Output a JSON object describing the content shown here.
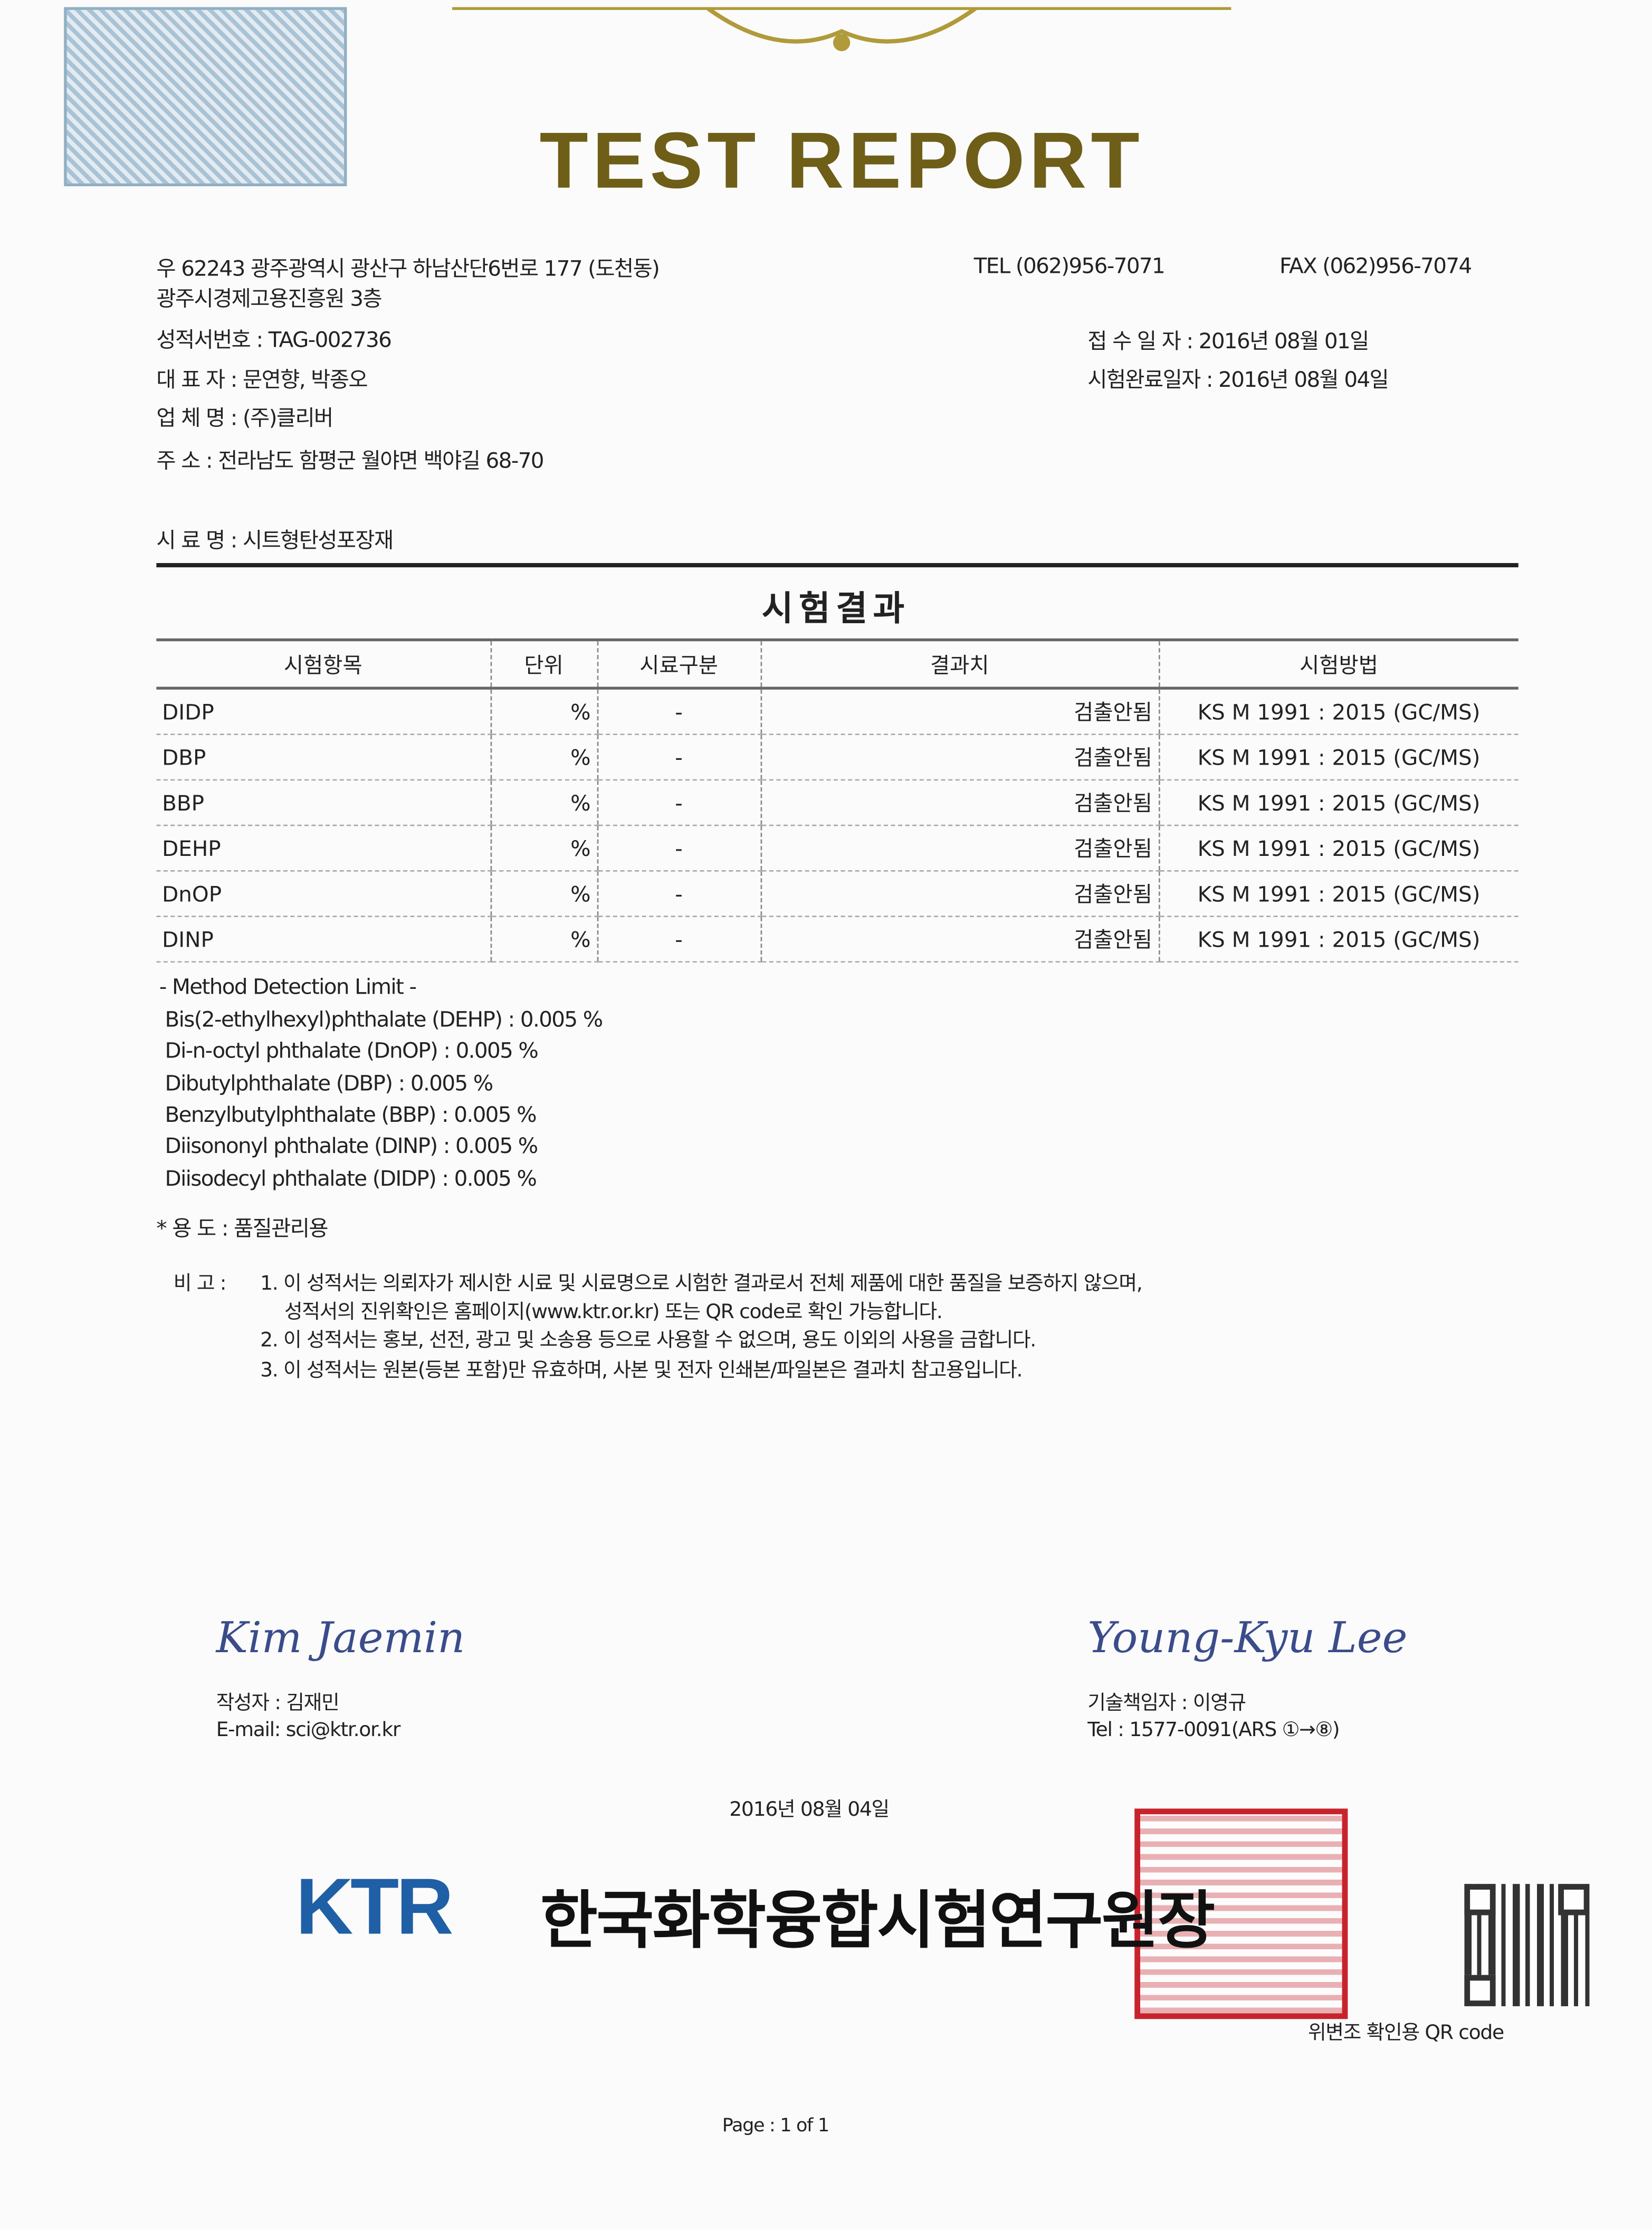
{
  "header": {
    "title": "TEST REPORT",
    "address_line1": "우 62243 광주광역시 광산구 하남산단6번로 177 (도천동)",
    "address_line2": "광주시경제고용진흥원 3층",
    "tel": "TEL (062)956-7071",
    "fax": "FAX (062)956-7074"
  },
  "info": {
    "report_no": "성적서번호 : TAG-002736",
    "representative": "대  표  자 : 문연향, 박종오",
    "company": "업  체  명 : (주)클리버",
    "address": "주        소 : 전라남도 함평군 월야면 백야길 68-70",
    "received": "접 수    일 자 : 2016년 08월 01일",
    "completed": "시험완료일자 : 2016년 08월 04일",
    "sample": "시  료  명 : 시트형탄성포장재"
  },
  "results": {
    "title": "시험결과",
    "headers": [
      "시험항목",
      "단위",
      "시료구분",
      "결과치",
      "시험방법"
    ],
    "rows": [
      {
        "item": "DIDP",
        "unit": "%",
        "sample": "-",
        "result": "검출안됨",
        "method": "KS M 1991 : 2015 (GC/MS)"
      },
      {
        "item": "DBP",
        "unit": "%",
        "sample": "-",
        "result": "검출안됨",
        "method": "KS M 1991 : 2015 (GC/MS)"
      },
      {
        "item": "BBP",
        "unit": "%",
        "sample": "-",
        "result": "검출안됨",
        "method": "KS M 1991 : 2015 (GC/MS)"
      },
      {
        "item": "DEHP",
        "unit": "%",
        "sample": "-",
        "result": "검출안됨",
        "method": "KS M 1991 : 2015 (GC/MS)"
      },
      {
        "item": "DnOP",
        "unit": "%",
        "sample": "-",
        "result": "검출안됨",
        "method": "KS M 1991 : 2015 (GC/MS)"
      },
      {
        "item": "DINP",
        "unit": "%",
        "sample": "-",
        "result": "검출안됨",
        "method": "KS M 1991 : 2015 (GC/MS)"
      }
    ]
  },
  "mdl": {
    "title": "- Method Detection Limit -",
    "lines": [
      "Bis(2-ethylhexyl)phthalate (DEHP) : 0.005 %",
      "Di-n-octyl phthalate (DnOP) : 0.005 %",
      "Dibutylphthalate (DBP) : 0.005 %",
      "Benzylbutylphthalate (BBP) : 0.005 %",
      "Diisononyl phthalate (DINP) : 0.005 %",
      "Diisodecyl phthalate (DIDP) : 0.005 %"
    ]
  },
  "purpose": "* 용 도 : 품질관리용",
  "remarks": {
    "label": "비 고 :",
    "lines": [
      "1. 이 성적서는 의뢰자가 제시한 시료 및 시료명으로 시험한 결과로서 전체 제품에 대한 품질을 보증하지 않으며,",
      "성적서의 진위확인은 홈페이지(www.ktr.or.kr) 또는 QR code로 확인 가능합니다.",
      "2. 이 성적서는 홍보, 선전, 광고 및 소송용 등으로 사용할 수 없으며, 용도 이외의 사용을 금합니다.",
      "3. 이 성적서는 원본(등본 포함)만 유효하며, 사본 및 전자 인쇄본/파일본은 결과치 참고용입니다."
    ]
  },
  "signatures": {
    "left": {
      "signature": "Kim Jaemin",
      "name": "작성자 : 김재민",
      "contact": "E-mail: sci@ktr.or.kr"
    },
    "right": {
      "signature": "Young-Kyu Lee",
      "name": "기술책임자 : 이영규",
      "contact": "Tel : 1577-0091(ARS ①→⑧)"
    }
  },
  "issue_date": "2016년 08월 04일",
  "footer": {
    "logo": "KTR",
    "organization": "한국화학융합시험연구원장",
    "qr_caption": "위변조 확인용 QR code",
    "page": "Page :   1   of   1"
  },
  "colors": {
    "title_gold": "#6e5e18",
    "ktr_blue": "#1f5fa6",
    "seal_red": "#c8232c"
  }
}
